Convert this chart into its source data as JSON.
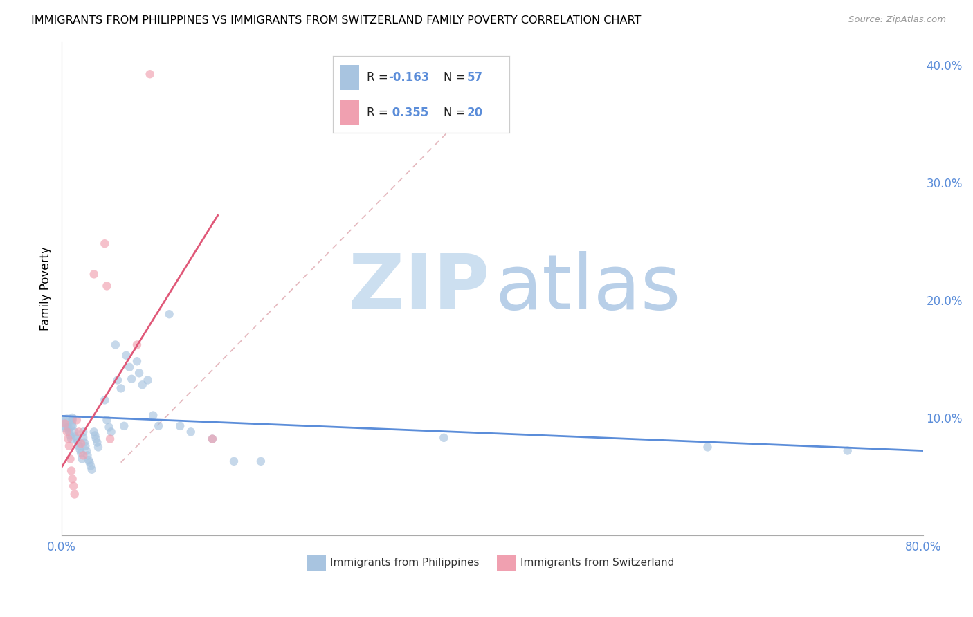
{
  "title": "IMMIGRANTS FROM PHILIPPINES VS IMMIGRANTS FROM SWITZERLAND FAMILY POVERTY CORRELATION CHART",
  "source": "Source: ZipAtlas.com",
  "ylabel": "Family Poverty",
  "xlim": [
    0.0,
    0.8
  ],
  "ylim": [
    0.0,
    0.42
  ],
  "color_blue": "#a8c4e0",
  "color_pink": "#f0a0b0",
  "line_blue": "#5b8dd9",
  "line_pink": "#e05878",
  "line_dashed_color": "#dca0a8",
  "watermark_zip_color": "#ccdff0",
  "watermark_atlas_color": "#b8cfe8",
  "philippines_x": [
    0.003,
    0.005,
    0.006,
    0.007,
    0.008,
    0.009,
    0.01,
    0.01,
    0.01,
    0.012,
    0.013,
    0.014,
    0.015,
    0.016,
    0.017,
    0.018,
    0.019,
    0.02,
    0.02,
    0.021,
    0.022,
    0.023,
    0.024,
    0.025,
    0.026,
    0.027,
    0.028,
    0.03,
    0.031,
    0.032,
    0.033,
    0.034,
    0.04,
    0.042,
    0.044,
    0.046,
    0.05,
    0.052,
    0.055,
    0.058,
    0.06,
    0.063,
    0.065,
    0.07,
    0.072,
    0.075,
    0.08,
    0.085,
    0.09,
    0.1,
    0.11,
    0.12,
    0.14,
    0.16,
    0.185,
    0.355,
    0.6,
    0.73
  ],
  "philippines_y": [
    0.095,
    0.095,
    0.092,
    0.088,
    0.085,
    0.082,
    0.1,
    0.098,
    0.093,
    0.088,
    0.084,
    0.082,
    0.079,
    0.076,
    0.073,
    0.07,
    0.065,
    0.088,
    0.083,
    0.079,
    0.076,
    0.072,
    0.068,
    0.064,
    0.062,
    0.059,
    0.056,
    0.088,
    0.085,
    0.082,
    0.079,
    0.075,
    0.115,
    0.098,
    0.092,
    0.088,
    0.162,
    0.132,
    0.125,
    0.093,
    0.153,
    0.143,
    0.133,
    0.148,
    0.138,
    0.128,
    0.132,
    0.102,
    0.093,
    0.188,
    0.093,
    0.088,
    0.082,
    0.063,
    0.063,
    0.083,
    0.075,
    0.072
  ],
  "philippines_sizes": [
    200,
    350,
    80,
    80,
    80,
    80,
    80,
    80,
    80,
    80,
    80,
    80,
    80,
    80,
    80,
    80,
    80,
    80,
    80,
    80,
    80,
    80,
    80,
    80,
    80,
    80,
    80,
    80,
    80,
    80,
    80,
    80,
    80,
    80,
    80,
    80,
    80,
    80,
    80,
    80,
    80,
    80,
    80,
    80,
    80,
    80,
    80,
    80,
    80,
    80,
    80,
    80,
    80,
    80,
    80,
    80,
    80,
    80
  ],
  "switzerland_x": [
    0.003,
    0.005,
    0.006,
    0.007,
    0.008,
    0.009,
    0.01,
    0.011,
    0.012,
    0.014,
    0.016,
    0.018,
    0.02,
    0.03,
    0.04,
    0.042,
    0.045,
    0.07,
    0.082,
    0.14
  ],
  "switzerland_y": [
    0.095,
    0.088,
    0.082,
    0.076,
    0.065,
    0.055,
    0.048,
    0.042,
    0.035,
    0.098,
    0.088,
    0.078,
    0.068,
    0.222,
    0.248,
    0.212,
    0.082,
    0.162,
    0.392,
    0.082
  ],
  "switzerland_sizes": [
    80,
    80,
    80,
    80,
    80,
    80,
    80,
    80,
    80,
    80,
    80,
    80,
    80,
    80,
    80,
    80,
    80,
    80,
    80,
    80
  ],
  "blue_line_x": [
    0.0,
    0.8
  ],
  "blue_line_y": [
    0.1015,
    0.072
  ],
  "pink_line_x": [
    0.0,
    0.145
  ],
  "pink_line_y": [
    0.058,
    0.272
  ],
  "dashed_line_x": [
    0.055,
    0.415
  ],
  "dashed_line_y": [
    0.062,
    0.395
  ]
}
